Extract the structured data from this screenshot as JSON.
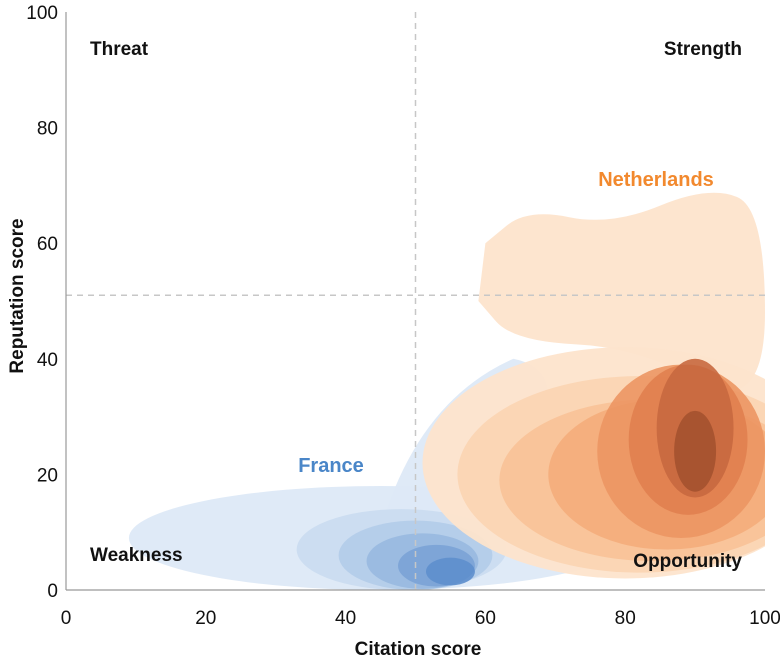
{
  "chart_data": {
    "type": "density-contour",
    "xlabel": "Citation score",
    "ylabel": "Reputation score",
    "xlim": [
      0,
      100
    ],
    "ylim": [
      0,
      100
    ],
    "x_ticks": [
      "0",
      "20",
      "40",
      "60",
      "80",
      "100"
    ],
    "y_ticks": [
      "0",
      "20",
      "40",
      "60",
      "80",
      "100"
    ],
    "reference_lines": {
      "x": 50,
      "y": 51
    },
    "quadrants": {
      "top_left": "Threat",
      "top_right": "Strength",
      "bottom_left": "Weakness",
      "bottom_right": "Opportunity"
    },
    "series": [
      {
        "name": "France",
        "color": "#4a86c8",
        "fill_colors": [
          "#dde9f7",
          "#cadcf0",
          "#b3cce9",
          "#98b9e0",
          "#7ba3d6",
          "#5e8fcd"
        ],
        "levels": [
          {
            "cx": 45,
            "cy": 9,
            "rx": 36,
            "ry": 9
          },
          {
            "cx": 48,
            "cy": 7,
            "rx": 15,
            "ry": 7
          },
          {
            "cx": 50,
            "cy": 6,
            "rx": 11,
            "ry": 6
          },
          {
            "cx": 51,
            "cy": 5,
            "rx": 8,
            "ry": 4.8
          },
          {
            "cx": 53,
            "cy": 4.2,
            "rx": 5.5,
            "ry": 3.6
          },
          {
            "cx": 55,
            "cy": 3.2,
            "rx": 3.5,
            "ry": 2.4
          }
        ],
        "spur": {
          "x": [
            44,
            70
          ],
          "y": [
            6,
            40
          ]
        }
      },
      {
        "name": "Netherlands",
        "color": "#f2892e",
        "fill_colors": [
          "#fde4cc",
          "#fbd4b1",
          "#f8c297",
          "#f4ad7b",
          "#ec9663",
          "#e07f4f",
          "#c8683f",
          "#a4522f"
        ],
        "levels": [
          {
            "cx": 80,
            "cy": 22,
            "rx": 29,
            "ry": 20
          },
          {
            "cx": 82,
            "cy": 20,
            "rx": 26,
            "ry": 17
          },
          {
            "cx": 84,
            "cy": 19,
            "rx": 22,
            "ry": 14
          },
          {
            "cx": 86,
            "cy": 20,
            "rx": 17,
            "ry": 13
          },
          {
            "cx": 88,
            "cy": 24,
            "rx": 12,
            "ry": 15
          },
          {
            "cx": 89,
            "cy": 26,
            "rx": 8.5,
            "ry": 13
          },
          {
            "cx": 90,
            "cy": 28,
            "rx": 5.5,
            "ry": 12
          },
          {
            "cx": 90,
            "cy": 24,
            "rx": 3,
            "ry": 7
          }
        ],
        "top_lobe": [
          [
            60,
            60
          ],
          [
            66,
            66
          ],
          [
            78,
            63
          ],
          [
            92,
            70
          ],
          [
            100,
            66
          ],
          [
            100,
            30
          ],
          [
            82,
            42
          ],
          [
            64,
            43
          ],
          [
            59,
            50
          ]
        ]
      }
    ]
  }
}
